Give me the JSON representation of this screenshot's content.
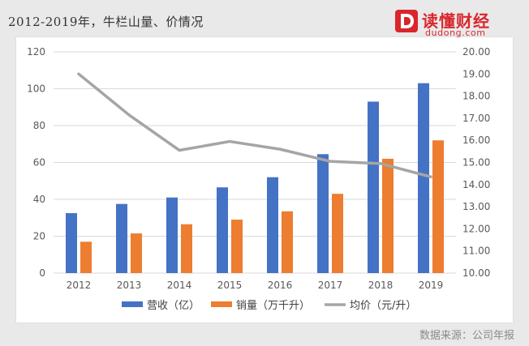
{
  "page": {
    "title": "2012-2019年，牛栏山量、价情况",
    "source": "数据来源：公司年报"
  },
  "logo": {
    "cn_text": "读懂财经",
    "en_text": "dudong.com",
    "brand_color": "#d9262c",
    "icon": "d-letter-icon"
  },
  "chart_data": {
    "type": "bar",
    "categories": [
      "2012",
      "2013",
      "2014",
      "2015",
      "2016",
      "2017",
      "2018",
      "2019"
    ],
    "y_left": {
      "min": 0,
      "max": 120,
      "ticks": [
        "0",
        "20",
        "40",
        "60",
        "80",
        "100",
        "120"
      ]
    },
    "y_right": {
      "min": 10,
      "max": 20,
      "ticks": [
        "10.00",
        "11.00",
        "12.00",
        "13.00",
        "14.00",
        "15.00",
        "16.00",
        "17.00",
        "18.00",
        "19.00",
        "20.00"
      ]
    },
    "grid": "horizontal",
    "legend_position": "bottom",
    "series": [
      {
        "name": "营收（亿）",
        "type": "bar",
        "axis": "left",
        "color": "#4472c4",
        "values": [
          32.5,
          37.5,
          41,
          46.5,
          52,
          64.5,
          93,
          103
        ]
      },
      {
        "name": "销量（万千升）",
        "type": "bar",
        "axis": "left",
        "color": "#ed7d31",
        "values": [
          17,
          21.5,
          26.5,
          29,
          33.5,
          43,
          62,
          72
        ]
      },
      {
        "name": "均价（元/升）",
        "type": "line",
        "axis": "right",
        "color": "#a5a5a5",
        "values": [
          19.0,
          17.15,
          15.55,
          15.95,
          15.6,
          15.05,
          14.95,
          14.35
        ]
      }
    ]
  }
}
